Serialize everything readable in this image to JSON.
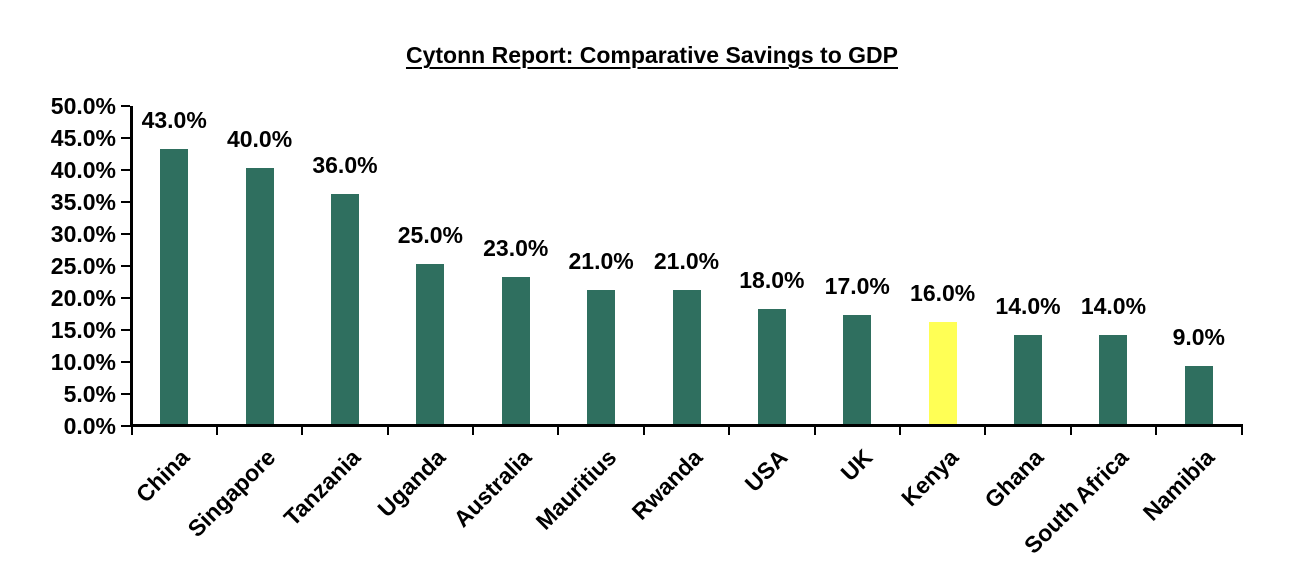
{
  "chart_data": {
    "type": "bar",
    "title": "Cytonn Report: Comparative Savings to GDP",
    "categories": [
      "China",
      "Singapore",
      "Tanzania",
      "Uganda",
      "Australia",
      "Mauritius",
      "Rwanda",
      "USA",
      "UK",
      "Kenya",
      "Ghana",
      "South Africa",
      "Namibia"
    ],
    "values": [
      43.0,
      40.0,
      36.0,
      25.0,
      23.0,
      21.0,
      21.0,
      18.0,
      17.0,
      16.0,
      14.0,
      14.0,
      9.0
    ],
    "value_labels": [
      "43.0%",
      "40.0%",
      "36.0%",
      "25.0%",
      "23.0%",
      "21.0%",
      "21.0%",
      "18.0%",
      "17.0%",
      "16.0%",
      "14.0%",
      "14.0%",
      "9.0%"
    ],
    "ytick_labels": [
      "0.0%",
      "5.0%",
      "10.0%",
      "15.0%",
      "20.0%",
      "25.0%",
      "30.0%",
      "35.0%",
      "40.0%",
      "45.0%",
      "50.0%"
    ],
    "ylim": [
      0,
      50
    ],
    "ytick_step": 5,
    "xlabel": "",
    "ylabel": "",
    "grid": "off",
    "legend": "none",
    "highlight_category": "Kenya",
    "highlight_index": 9,
    "bar_color": "#2F6F5F",
    "highlight_color": "#FFFF55",
    "axis_color": "#000000",
    "text_color": "#000000",
    "background_color": "#FFFFFF"
  }
}
